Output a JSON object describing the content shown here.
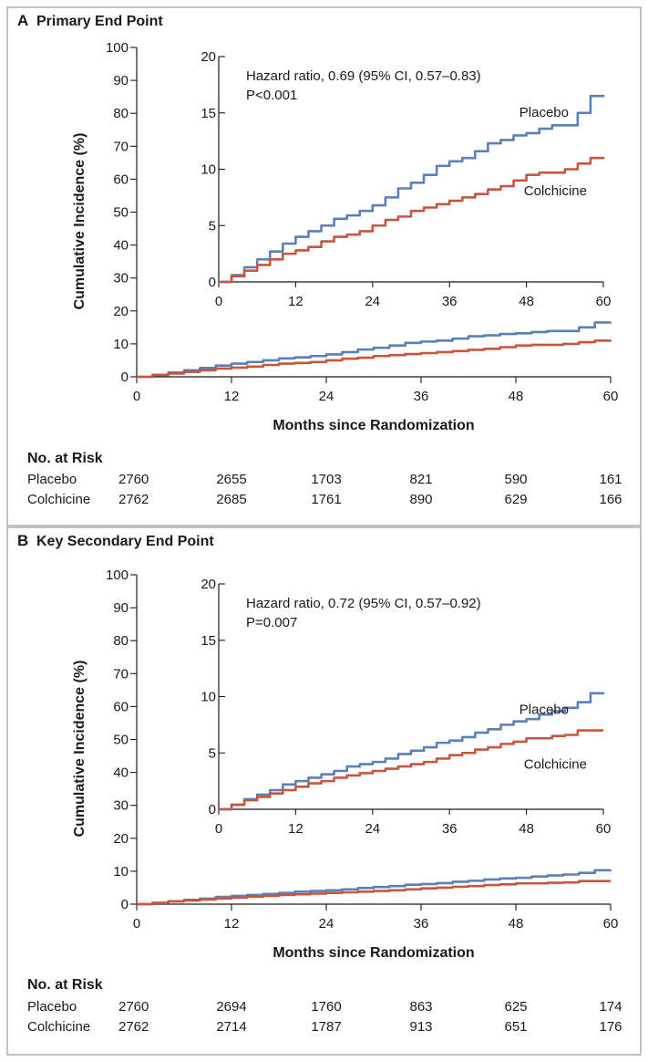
{
  "colors": {
    "placebo": "#5b7fb9",
    "colchicine": "#c8553d"
  },
  "chart_data": [
    {
      "type": "line",
      "panel_label": "A",
      "title": "Primary End Point",
      "xlabel": "Months since Randomization",
      "ylabel": "Cumulative Incidence (%)",
      "xlim": [
        0,
        60
      ],
      "ylim": [
        0,
        100
      ],
      "xticks": [
        0,
        12,
        24,
        36,
        48,
        60
      ],
      "yticks": [
        0,
        10,
        20,
        30,
        40,
        50,
        60,
        70,
        80,
        90,
        100
      ],
      "inset": {
        "ylim": [
          0,
          20
        ],
        "yticks": [
          0,
          5,
          10,
          15,
          20
        ],
        "annotation_line1": "Hazard ratio, 0.69 (95% CI, 0.57–0.83)",
        "annotation_line2": "P<0.001"
      },
      "series": [
        {
          "name": "Placebo",
          "x": [
            0,
            2,
            4,
            6,
            8,
            10,
            12,
            14,
            16,
            18,
            20,
            22,
            24,
            26,
            28,
            30,
            32,
            34,
            36,
            38,
            40,
            42,
            44,
            46,
            48,
            50,
            52,
            54,
            56,
            58,
            60
          ],
          "values": [
            0,
            0.6,
            1.3,
            2.0,
            2.7,
            3.4,
            4.0,
            4.5,
            5.0,
            5.6,
            5.9,
            6.3,
            6.8,
            7.5,
            8.3,
            8.8,
            9.5,
            10.3,
            10.7,
            11.0,
            11.6,
            12.3,
            12.6,
            13.0,
            13.2,
            13.6,
            13.9,
            13.9,
            15.0,
            16.5,
            16.6
          ]
        },
        {
          "name": "Colchicine",
          "x": [
            0,
            2,
            4,
            6,
            8,
            10,
            12,
            14,
            16,
            18,
            20,
            22,
            24,
            26,
            28,
            30,
            32,
            34,
            36,
            38,
            40,
            42,
            44,
            46,
            48,
            50,
            52,
            54,
            56,
            58,
            60
          ],
          "values": [
            0,
            0.5,
            1.0,
            1.5,
            2.0,
            2.5,
            2.8,
            3.1,
            3.6,
            4.0,
            4.2,
            4.5,
            5.0,
            5.5,
            5.8,
            6.3,
            6.6,
            6.9,
            7.2,
            7.5,
            7.8,
            8.2,
            8.5,
            9.0,
            9.5,
            9.7,
            9.7,
            10.0,
            10.5,
            11.0,
            11.1
          ]
        }
      ],
      "risk_table": {
        "heading": "No. at Risk",
        "rows": [
          {
            "label": "Placebo",
            "values": [
              "2760",
              "2655",
              "1703",
              "821",
              "590",
              "161"
            ]
          },
          {
            "label": "Colchicine",
            "values": [
              "2762",
              "2685",
              "1761",
              "890",
              "629",
              "166"
            ]
          }
        ]
      }
    },
    {
      "type": "line",
      "panel_label": "B",
      "title": "Key Secondary End Point",
      "xlabel": "Months since Randomization",
      "ylabel": "Cumulative Incidence (%)",
      "xlim": [
        0,
        60
      ],
      "ylim": [
        0,
        100
      ],
      "xticks": [
        0,
        12,
        24,
        36,
        48,
        60
      ],
      "yticks": [
        0,
        10,
        20,
        30,
        40,
        50,
        60,
        70,
        80,
        90,
        100
      ],
      "inset": {
        "ylim": [
          0,
          20
        ],
        "yticks": [
          0,
          5,
          10,
          15,
          20
        ],
        "annotation_line1": "Hazard ratio, 0.72 (95% CI, 0.57–0.92)",
        "annotation_line2": "P=0.007"
      },
      "series": [
        {
          "name": "Placebo",
          "x": [
            0,
            2,
            4,
            6,
            8,
            10,
            12,
            14,
            16,
            18,
            20,
            22,
            24,
            26,
            28,
            30,
            32,
            34,
            36,
            38,
            40,
            42,
            44,
            46,
            48,
            50,
            52,
            54,
            56,
            58,
            60
          ],
          "values": [
            0,
            0.4,
            0.9,
            1.3,
            1.7,
            2.2,
            2.5,
            2.8,
            3.1,
            3.4,
            3.8,
            4.0,
            4.2,
            4.5,
            4.9,
            5.2,
            5.5,
            5.9,
            6.1,
            6.4,
            6.8,
            7.1,
            7.5,
            7.8,
            8.0,
            8.4,
            8.7,
            9.0,
            9.5,
            10.3,
            10.4
          ]
        },
        {
          "name": "Colchicine",
          "x": [
            0,
            2,
            4,
            6,
            8,
            10,
            12,
            14,
            16,
            18,
            20,
            22,
            24,
            26,
            28,
            30,
            32,
            34,
            36,
            38,
            40,
            42,
            44,
            46,
            48,
            50,
            52,
            54,
            56,
            58,
            60
          ],
          "values": [
            0,
            0.4,
            0.8,
            1.1,
            1.4,
            1.7,
            2.0,
            2.3,
            2.5,
            2.8,
            3.0,
            3.2,
            3.4,
            3.6,
            3.8,
            4.0,
            4.2,
            4.5,
            4.8,
            5.0,
            5.3,
            5.5,
            5.8,
            6.0,
            6.3,
            6.3,
            6.5,
            6.6,
            7.0,
            7.0,
            7.0
          ]
        }
      ],
      "risk_table": {
        "heading": "No. at Risk",
        "rows": [
          {
            "label": "Placebo",
            "values": [
              "2760",
              "2694",
              "1760",
              "863",
              "625",
              "174"
            ]
          },
          {
            "label": "Colchicine",
            "values": [
              "2762",
              "2714",
              "1787",
              "913",
              "651",
              "176"
            ]
          }
        ]
      }
    }
  ]
}
